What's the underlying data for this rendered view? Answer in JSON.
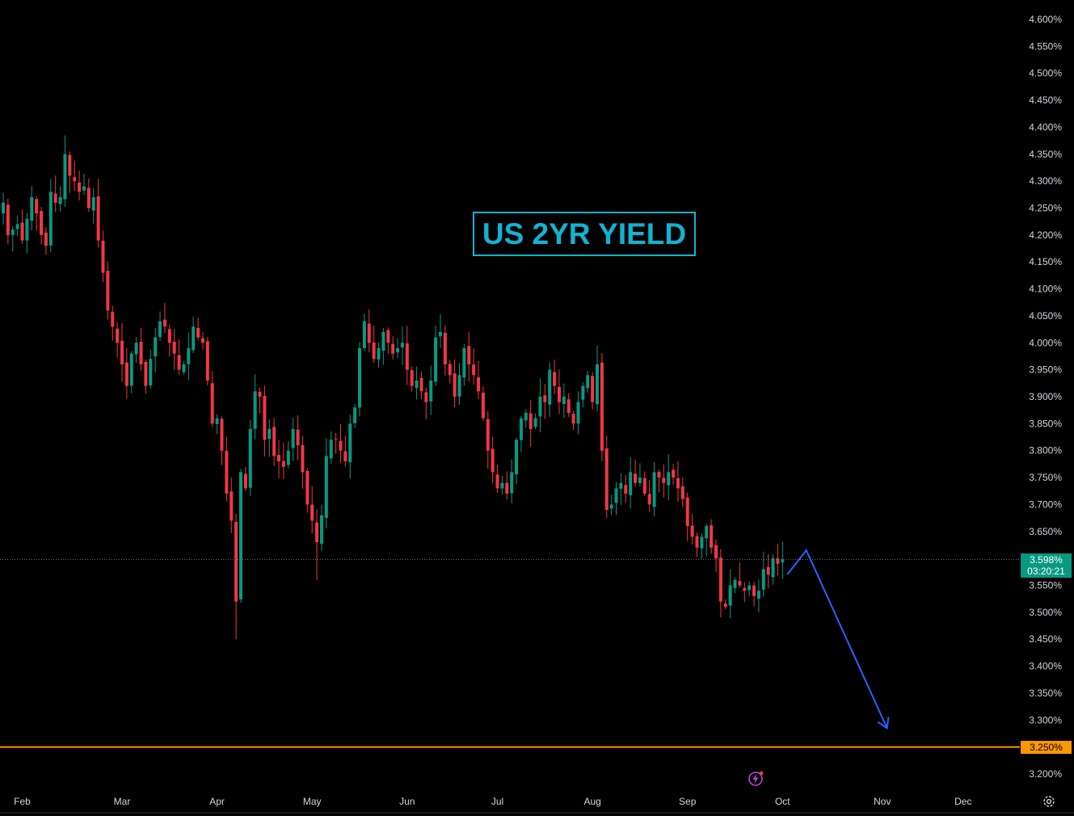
{
  "chart_data": {
    "type": "candlestick",
    "title": "US 2YR YIELD",
    "y_axis": {
      "side": "right",
      "min": 3.18,
      "max": 4.615,
      "tick_labels": [
        "4.600%",
        "4.550%",
        "4.500%",
        "4.450%",
        "4.400%",
        "4.350%",
        "4.300%",
        "4.250%",
        "4.200%",
        "4.150%",
        "4.100%",
        "4.050%",
        "4.000%",
        "3.950%",
        "3.900%",
        "3.850%",
        "3.800%",
        "3.750%",
        "3.700%",
        "3.650%",
        "3.550%",
        "3.500%",
        "3.450%",
        "3.400%",
        "3.350%",
        "3.300%",
        "3.200%"
      ],
      "tick_values": [
        4.6,
        4.55,
        4.5,
        4.45,
        4.4,
        4.35,
        4.3,
        4.25,
        4.2,
        4.15,
        4.1,
        4.05,
        4.0,
        3.95,
        3.9,
        3.85,
        3.8,
        3.75,
        3.7,
        3.65,
        3.55,
        3.5,
        3.45,
        3.4,
        3.35,
        3.3,
        3.2
      ]
    },
    "x_axis": {
      "months": [
        "Feb",
        "Mar",
        "Apr",
        "May",
        "Jun",
        "Jul",
        "Aug",
        "Sep",
        "Oct",
        "Nov",
        "Dec"
      ],
      "month_start_index": [
        4,
        25,
        45,
        65,
        85,
        104,
        124,
        144,
        164,
        185,
        202
      ]
    },
    "current_price": {
      "label": "3.598%",
      "countdown": "03:20:21",
      "value": 3.598
    },
    "target_level": {
      "label": "3.250%",
      "value": 3.25,
      "color": "#ff9800"
    },
    "projection_path": [
      [
        165,
        3.57
      ],
      [
        169,
        3.615
      ],
      [
        186,
        3.285
      ]
    ],
    "colors": {
      "up": "#089981",
      "down": "#f23645",
      "projection": "#2962ff",
      "title": "#11b3d1"
    },
    "closes": [
      4.26,
      4.2,
      4.21,
      4.22,
      4.19,
      4.23,
      4.27,
      4.24,
      4.2,
      4.18,
      4.28,
      4.26,
      4.27,
      4.35,
      4.31,
      4.3,
      4.28,
      4.29,
      4.25,
      4.27,
      4.19,
      4.13,
      4.06,
      4.03,
      4.0,
      3.96,
      3.92,
      3.98,
      4.0,
      3.96,
      3.92,
      3.97,
      4.01,
      4.04,
      4.03,
      4.0,
      3.98,
      3.95,
      3.96,
      3.99,
      4.03,
      4.01,
      4.0,
      3.93,
      3.85,
      3.86,
      3.8,
      3.72,
      3.67,
      3.52,
      3.76,
      3.73,
      3.84,
      3.91,
      3.9,
      3.82,
      3.84,
      3.79,
      3.78,
      3.77,
      3.8,
      3.84,
      3.81,
      3.76,
      3.7,
      3.67,
      3.63,
      3.68,
      3.79,
      3.82,
      3.82,
      3.8,
      3.78,
      3.85,
      3.88,
      3.99,
      4.04,
      4.0,
      3.97,
      3.99,
      4.02,
      4.0,
      3.98,
      3.99,
      4.0,
      3.95,
      3.92,
      3.93,
      3.91,
      3.89,
      3.93,
      4.01,
      4.02,
      3.96,
      3.94,
      3.9,
      3.94,
      3.99,
      3.96,
      3.94,
      3.91,
      3.86,
      3.8,
      3.76,
      3.73,
      3.74,
      3.72,
      3.76,
      3.82,
      3.86,
      3.87,
      3.84,
      3.86,
      3.9,
      3.89,
      3.95,
      3.92,
      3.89,
      3.9,
      3.87,
      3.85,
      3.89,
      3.92,
      3.94,
      3.89,
      3.96,
      3.8,
      3.69,
      3.7,
      3.73,
      3.74,
      3.72,
      3.76,
      3.74,
      3.75,
      3.72,
      3.7,
      3.76,
      3.75,
      3.74,
      3.76,
      3.75,
      3.73,
      3.71,
      3.66,
      3.64,
      3.62,
      3.64,
      3.66,
      3.62,
      3.6,
      3.52,
      3.51,
      3.55,
      3.56,
      3.55,
      3.54,
      3.55,
      3.53,
      3.54,
      3.58,
      3.57,
      3.6,
      3.59,
      3.598
    ]
  }
}
